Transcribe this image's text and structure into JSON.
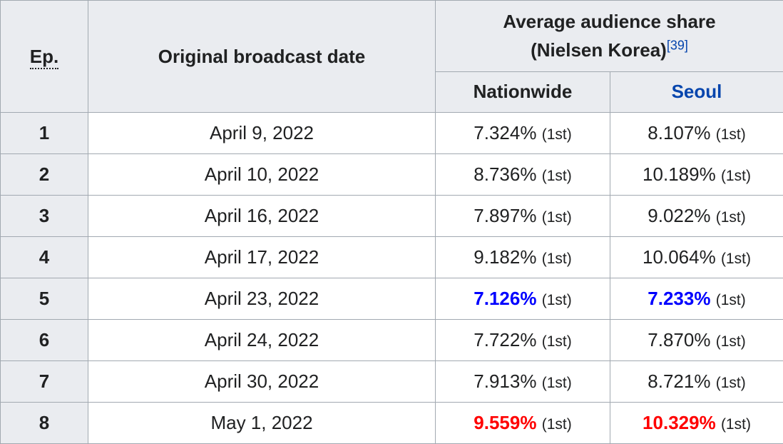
{
  "header": {
    "ep": "Ep.",
    "date": "Original broadcast date",
    "share_line1": "Average audience share",
    "share_line2": "(Nielsen Korea)",
    "ref": "[39]",
    "nationwide": "Nationwide",
    "seoul": "Seoul"
  },
  "rows": [
    {
      "ep": "1",
      "date": "April 9, 2022",
      "nationwide": "7.324%",
      "nationwide_rank": "(1st)",
      "seoul": "8.107%",
      "seoul_rank": "(1st)"
    },
    {
      "ep": "2",
      "date": "April 10, 2022",
      "nationwide": "8.736%",
      "nationwide_rank": "(1st)",
      "seoul": "10.189%",
      "seoul_rank": "(1st)"
    },
    {
      "ep": "3",
      "date": "April 16, 2022",
      "nationwide": "7.897%",
      "nationwide_rank": "(1st)",
      "seoul": "9.022%",
      "seoul_rank": "(1st)"
    },
    {
      "ep": "4",
      "date": "April 17, 2022",
      "nationwide": "9.182%",
      "nationwide_rank": "(1st)",
      "seoul": "10.064%",
      "seoul_rank": "(1st)"
    },
    {
      "ep": "5",
      "date": "April 23, 2022",
      "nationwide": "7.126%",
      "nationwide_rank": "(1st)",
      "seoul": "7.233%",
      "seoul_rank": "(1st)"
    },
    {
      "ep": "6",
      "date": "April 24, 2022",
      "nationwide": "7.722%",
      "nationwide_rank": "(1st)",
      "seoul": "7.870%",
      "seoul_rank": "(1st)"
    },
    {
      "ep": "7",
      "date": "April 30, 2022",
      "nationwide": "7.913%",
      "nationwide_rank": "(1st)",
      "seoul": "8.721%",
      "seoul_rank": "(1st)"
    },
    {
      "ep": "8",
      "date": "May 1, 2022",
      "nationwide": "9.559%",
      "nationwide_rank": "(1st)",
      "seoul": "10.329%",
      "seoul_rank": "(1st)"
    }
  ],
  "colors": {
    "lowest": "#0000ff",
    "highest": "#ff0000",
    "link": "#0645ad",
    "header_bg": "#eaecf0",
    "border": "#a2a9b1"
  }
}
